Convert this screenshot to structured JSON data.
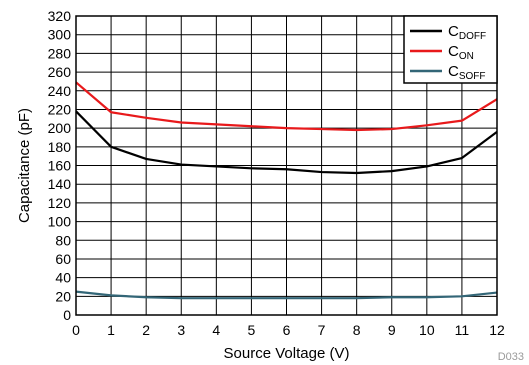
{
  "chart_data": {
    "type": "line",
    "xlabel": "Source Voltage (V)",
    "ylabel": "Capacitance (pF)",
    "xlim": [
      0,
      12
    ],
    "ylim": [
      0,
      320
    ],
    "x_ticks": [
      0,
      1,
      2,
      3,
      4,
      5,
      6,
      7,
      8,
      9,
      10,
      11,
      12
    ],
    "y_ticks": [
      0,
      20,
      40,
      60,
      80,
      100,
      120,
      140,
      160,
      180,
      200,
      220,
      240,
      260,
      280,
      300,
      320
    ],
    "grid": true,
    "legend_position": "top-right",
    "figure_id": "D033",
    "x": [
      0,
      1,
      2,
      3,
      4,
      5,
      6,
      7,
      8,
      9,
      10,
      11,
      12
    ],
    "series": [
      {
        "name_main": "C",
        "name_sub": "DOFF",
        "color": "#000000",
        "values": [
          218,
          180,
          167,
          161,
          159,
          157,
          156,
          153,
          152,
          154,
          159,
          168,
          196
        ]
      },
      {
        "name_main": "C",
        "name_sub": "ON",
        "color": "#e8191b",
        "values": [
          249,
          217,
          211,
          206,
          204,
          202,
          200,
          199,
          198,
          199,
          203,
          208,
          231
        ]
      },
      {
        "name_main": "C",
        "name_sub": "SOFF",
        "color": "#336677",
        "values": [
          25,
          21,
          19,
          18,
          18,
          18,
          18,
          18,
          18,
          19,
          19,
          20,
          24
        ]
      }
    ]
  }
}
